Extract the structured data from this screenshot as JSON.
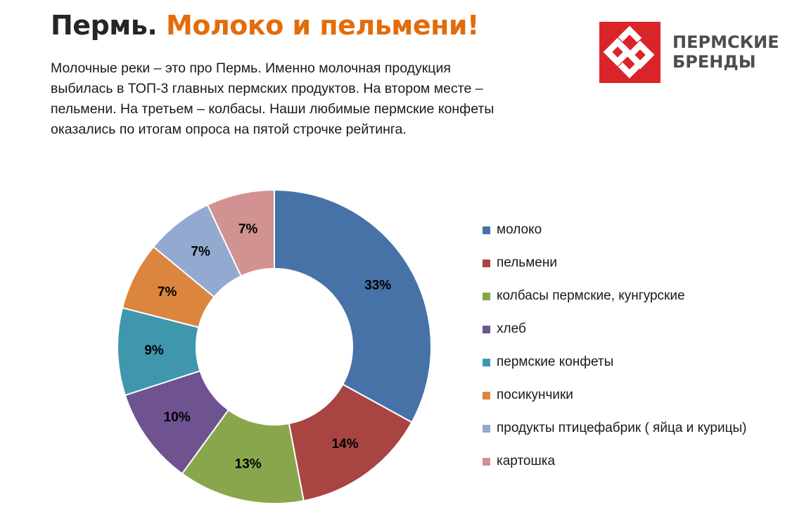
{
  "header": {
    "title_dark": "Пермь.",
    "title_accent": "Молоко и пельмени!",
    "intro_lines": [
      "Молочные реки – это про Пермь. Именно молочная продукция",
      "выбилась в ТОП-3 главных пермских продуктов. На втором месте –",
      "пельмени. На третьем – колбасы. Наши любимые пермские конфеты",
      "оказались по итогам опроса на пятой строчке рейтинга."
    ]
  },
  "logo": {
    "line1": "ПЕРМСКИЕ",
    "line2": "БРЕНДЫ",
    "color": "#d9252a",
    "icon": "heart-link-icon"
  },
  "colors": {
    "title_accent": "#e36c0a",
    "text": "#1a1a1a"
  },
  "chart_data": {
    "type": "pie",
    "variant": "donut",
    "legend_position": "right",
    "categories": [
      "молоко",
      "пельмени",
      "колбасы пермские, кунгурские",
      "хлеб",
      "пермские конфеты",
      "посикунчики",
      "продукты птицефабрик  ( яйца и курицы)",
      "картошка"
    ],
    "values": [
      33,
      14,
      13,
      10,
      9,
      7,
      7,
      7
    ],
    "labels": [
      "33%",
      "14%",
      "13%",
      "10%",
      "9%",
      "7%",
      "7%",
      "7%"
    ],
    "colors": [
      "#4672a8",
      "#a84543",
      "#88a74c",
      "#6f5290",
      "#3f97ae",
      "#dc853e",
      "#93a9d0",
      "#d29292"
    ]
  }
}
